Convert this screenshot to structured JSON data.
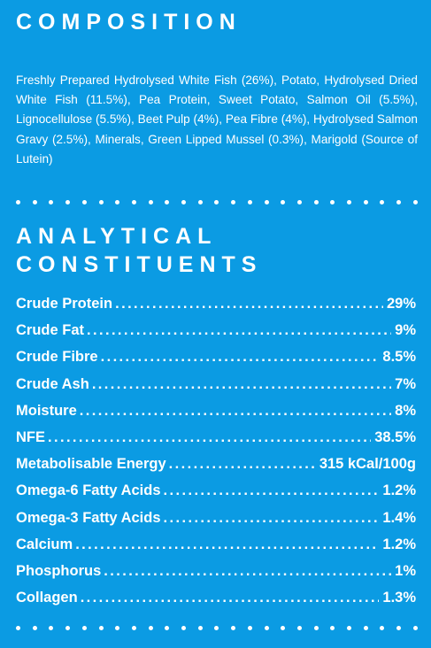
{
  "composition": {
    "heading": "COMPOSITION",
    "text": "Freshly Prepared Hydrolysed White Fish (26%), Potato, Hydrolysed Dried White Fish (11.5%), Pea Protein, Sweet Potato, Salmon Oil (5.5%), Lignocellulose (5.5%), Beet Pulp (4%), Pea Fibre (4%), Hydrolysed Salmon Gravy (2.5%), Minerals, Green Lipped Mussel (0.3%), Marigold (Source of Lutein)"
  },
  "analytical": {
    "heading_line1": "ANALYTICAL",
    "heading_line2": "CONSTITUENTS",
    "rows": [
      {
        "label": "Crude Protein",
        "value": "29%"
      },
      {
        "label": "Crude Fat",
        "value": "9%"
      },
      {
        "label": "Crude Fibre",
        "value": "8.5%"
      },
      {
        "label": "Crude Ash",
        "value": "7%"
      },
      {
        "label": "Moisture",
        "value": "8%"
      },
      {
        "label": "NFE",
        "value": "38.5%"
      },
      {
        "label": "Metabolisable Energy",
        "value": "315 kCal/100g"
      },
      {
        "label": "Omega-6 Fatty Acids",
        "value": "1.2%"
      },
      {
        "label": "Omega-3 Fatty Acids",
        "value": "1.4%"
      },
      {
        "label": "Calcium",
        "value": "1.2%"
      },
      {
        "label": "Phosphorus",
        "value": "1%"
      },
      {
        "label": "Collagen",
        "value": "1.3%"
      }
    ]
  },
  "colors": {
    "background": "#0B9BE3",
    "text": "#FFFFFF"
  }
}
